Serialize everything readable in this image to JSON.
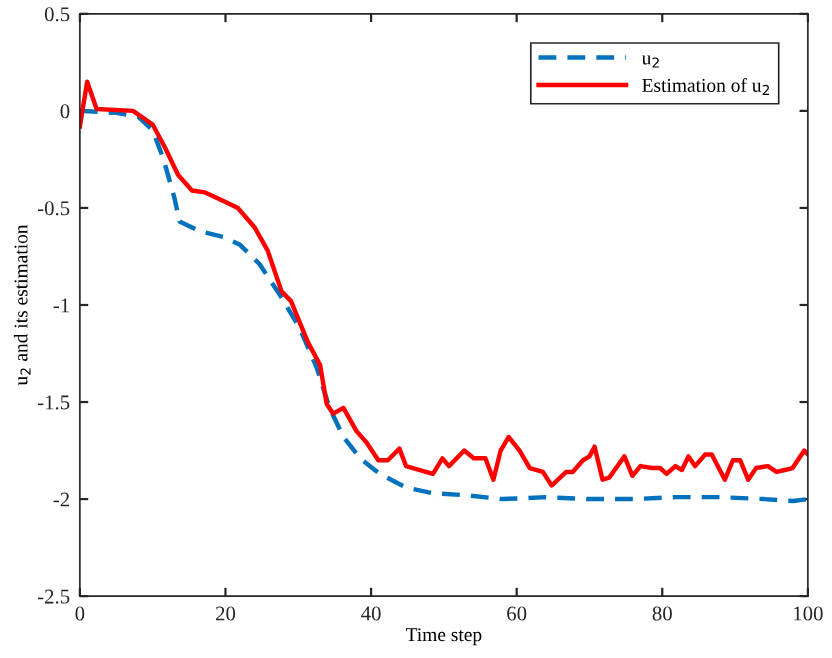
{
  "chart_data": {
    "type": "line",
    "xlabel": "Time step",
    "ylabel": "u$_{2}$ and its estimation",
    "xlim": [
      0,
      100
    ],
    "ylim": [
      -2.5,
      0.5
    ],
    "xticks": [
      0,
      20,
      40,
      60,
      80,
      100
    ],
    "yticks": [
      -2.5,
      -2,
      -1.5,
      -1,
      -0.5,
      0,
      0.5
    ],
    "grid": false,
    "legend": "top right",
    "series": [
      {
        "name": "u$_{2}$",
        "color": "#0072bd",
        "line_style": "dashed",
        "x": [
          0,
          5,
          8,
          10,
          11.5,
          13,
          13.7,
          16.5,
          19.7,
          22,
          24.7,
          27.5,
          30.2,
          32.5,
          34.3,
          36.2,
          38.5,
          41.2,
          44.8,
          48.5,
          53,
          58,
          64,
          70,
          76,
          82,
          88,
          94,
          98,
          100
        ],
        "values": [
          0,
          -0.01,
          -0.03,
          -0.1,
          -0.25,
          -0.45,
          -0.57,
          -0.62,
          -0.65,
          -0.69,
          -0.79,
          -0.95,
          -1.12,
          -1.32,
          -1.53,
          -1.68,
          -1.79,
          -1.87,
          -1.94,
          -1.97,
          -1.98,
          -2.0,
          -1.99,
          -2.0,
          -2.0,
          -1.99,
          -1.99,
          -2.0,
          -2.01,
          -2.0
        ]
      },
      {
        "name": "Estimation of u$_{2}$",
        "color": "#ff0000",
        "line_style": "solid",
        "x": [
          0,
          1,
          2.3,
          7.3,
          10,
          11.7,
          13.5,
          15.4,
          17.2,
          19.5,
          21.7,
          24,
          25.8,
          27.7,
          29,
          31.3,
          33,
          33.9,
          34.8,
          36.2,
          38,
          39.4,
          41,
          42.3,
          43.9,
          44.8,
          48.5,
          49.8,
          50.7,
          52.8,
          54.1,
          55.7,
          56.8,
          57.8,
          58.9,
          60.4,
          61.8,
          63.6,
          64.8,
          66.8,
          67.7,
          69.1,
          70,
          70.7,
          71.8,
          72.7,
          74.8,
          75.9,
          77,
          78.6,
          79.7,
          80.6,
          81.8,
          82.7,
          83.6,
          84.5,
          85.9,
          86.8,
          88.6,
          89.7,
          90.7,
          91.8,
          92.9,
          94.5,
          95.7,
          96.8,
          97.9,
          99.5,
          100
        ],
        "values": [
          -0.08,
          0.15,
          0.01,
          0,
          -0.07,
          -0.19,
          -0.33,
          -0.41,
          -0.42,
          -0.46,
          -0.5,
          -0.6,
          -0.72,
          -0.93,
          -0.98,
          -1.19,
          -1.31,
          -1.51,
          -1.56,
          -1.53,
          -1.65,
          -1.71,
          -1.8,
          -1.8,
          -1.74,
          -1.83,
          -1.87,
          -1.79,
          -1.83,
          -1.75,
          -1.79,
          -1.79,
          -1.9,
          -1.75,
          -1.68,
          -1.75,
          -1.84,
          -1.86,
          -1.93,
          -1.86,
          -1.86,
          -1.8,
          -1.78,
          -1.73,
          -1.9,
          -1.89,
          -1.78,
          -1.88,
          -1.83,
          -1.84,
          -1.84,
          -1.87,
          -1.83,
          -1.85,
          -1.78,
          -1.83,
          -1.77,
          -1.77,
          -1.9,
          -1.8,
          -1.8,
          -1.9,
          -1.84,
          -1.83,
          -1.86,
          -1.85,
          -1.84,
          -1.75,
          -1.77
        ]
      }
    ]
  }
}
